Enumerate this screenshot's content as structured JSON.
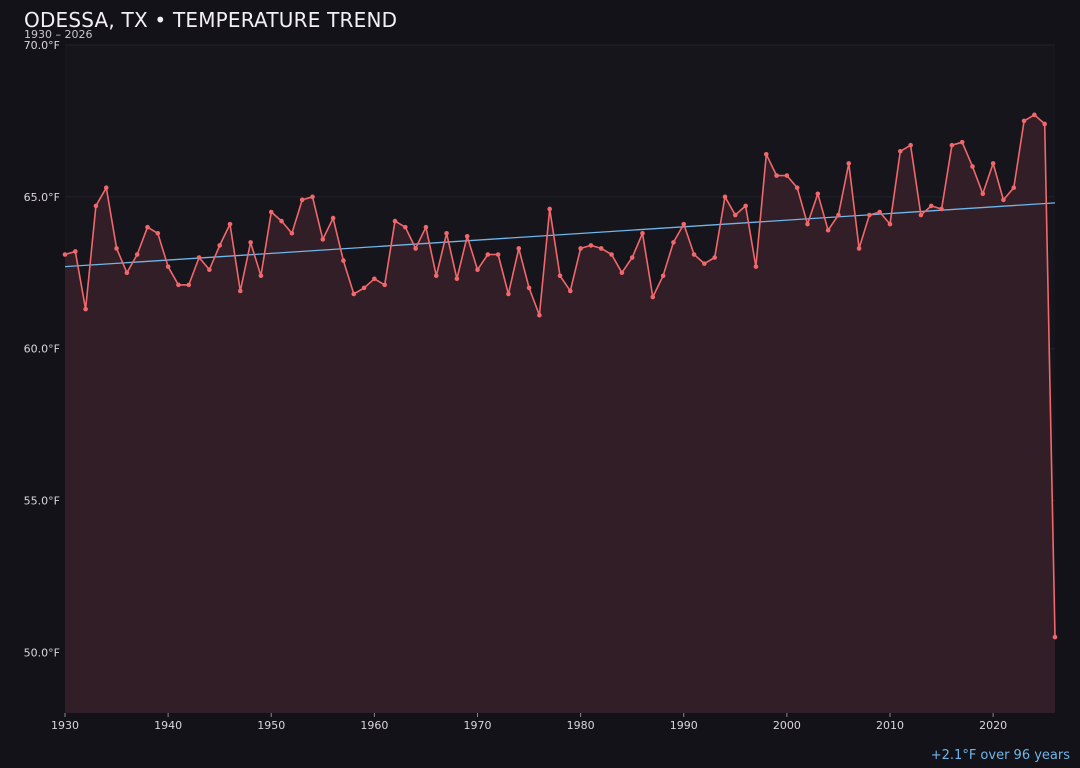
{
  "chart_data": {
    "type": "line",
    "title": "ODESSA, TX • TEMPERATURE TREND",
    "subtitle": "1930 – 2026",
    "trend_label": "+2.1°F over 96 years",
    "xlim": [
      1930,
      2026
    ],
    "ylim": [
      48.0,
      70.0
    ],
    "x_ticks": [
      1930,
      1940,
      1950,
      1960,
      1970,
      1980,
      1990,
      2000,
      2010,
      2020
    ],
    "y_ticks": [
      50,
      55,
      60,
      65,
      70
    ],
    "y_tick_labels": [
      "50.0°F",
      "55.0°F",
      "60.0°F",
      "65.0°F",
      "70.0°F"
    ],
    "grid": true,
    "colors": {
      "line": "#f0686c",
      "area": "#341f27",
      "trend": "#6fb6ea",
      "background": "#131218",
      "plot_background": "#16151b",
      "grid": "#24222a"
    },
    "series": [
      {
        "x": [
          1930,
          1931,
          1932,
          1933,
          1934,
          1935,
          1936,
          1937,
          1938,
          1939,
          1940,
          1941,
          1942,
          1943,
          1944,
          1945,
          1946,
          1947,
          1948,
          1949,
          1950,
          1951,
          1952,
          1953,
          1954,
          1955,
          1956,
          1957,
          1958,
          1959,
          1960,
          1961,
          1962,
          1963,
          1964,
          1965,
          1966,
          1967,
          1968,
          1969,
          1970,
          1971,
          1972,
          1973,
          1974,
          1975,
          1976,
          1977,
          1978,
          1979,
          1980,
          1981,
          1982,
          1983,
          1984,
          1985,
          1986,
          1987,
          1988,
          1989,
          1990,
          1991,
          1992,
          1993,
          1994,
          1995,
          1996,
          1997,
          1998,
          1999,
          2000,
          2001,
          2002,
          2003,
          2004,
          2005,
          2006,
          2007,
          2008,
          2009,
          2010,
          2011,
          2012,
          2013,
          2014,
          2015,
          2016,
          2017,
          2018,
          2019,
          2020,
          2021,
          2022,
          2023,
          2024,
          2025,
          2026
        ],
        "y": [
          63.1,
          63.2,
          61.3,
          64.7,
          65.3,
          63.3,
          62.5,
          63.1,
          64.0,
          63.8,
          62.7,
          62.1,
          62.1,
          63.0,
          62.6,
          63.4,
          64.1,
          61.9,
          63.5,
          62.4,
          64.5,
          64.2,
          63.8,
          64.9,
          65.0,
          63.6,
          64.3,
          62.9,
          61.8,
          62.0,
          62.3,
          62.1,
          64.2,
          64.0,
          63.3,
          64.0,
          62.4,
          63.8,
          62.3,
          63.7,
          62.6,
          63.1,
          63.1,
          61.8,
          63.3,
          62.0,
          61.1,
          64.6,
          62.4,
          61.9,
          63.3,
          63.4,
          63.3,
          63.1,
          62.5,
          63.0,
          63.8,
          61.7,
          62.4,
          63.5,
          64.1,
          63.1,
          62.8,
          63.0,
          65.0,
          64.4,
          64.7,
          62.7,
          66.4,
          65.7,
          65.7,
          65.3,
          64.1,
          65.1,
          63.9,
          64.4,
          66.1,
          63.3,
          64.4,
          64.5,
          64.1,
          66.5,
          66.7,
          64.4,
          64.7,
          64.6,
          66.7,
          66.8,
          66.0,
          65.1,
          66.1,
          64.9,
          65.3,
          67.5,
          67.7,
          67.4,
          50.5
        ]
      }
    ],
    "trend": {
      "x": [
        1930,
        2026
      ],
      "y": [
        62.7,
        64.8
      ]
    }
  }
}
